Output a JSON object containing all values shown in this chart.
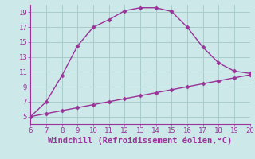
{
  "xlabel": "Windchill (Refroidissement éolien,°C)",
  "line1_x": [
    6,
    7,
    8,
    9,
    10,
    11,
    12,
    13,
    14,
    15,
    16,
    17,
    18,
    19,
    20
  ],
  "line1_y": [
    5,
    7,
    10.5,
    14.5,
    17,
    18,
    19.2,
    19.6,
    19.6,
    19.1,
    17,
    14.3,
    12.2,
    11.1,
    10.8
  ],
  "line2_x": [
    6,
    7,
    8,
    9,
    10,
    11,
    12,
    13,
    14,
    15,
    16,
    17,
    18,
    19,
    20
  ],
  "line2_y": [
    5.0,
    5.4,
    5.8,
    6.2,
    6.6,
    7.0,
    7.4,
    7.8,
    8.2,
    8.6,
    9.0,
    9.4,
    9.8,
    10.2,
    10.6
  ],
  "line_color": "#993399",
  "bg_color": "#cce8e8",
  "grid_color": "#aacccc",
  "xlim": [
    6,
    20
  ],
  "ylim": [
    4,
    20
  ],
  "xticks": [
    6,
    7,
    8,
    9,
    10,
    11,
    12,
    13,
    14,
    15,
    16,
    17,
    18,
    19,
    20
  ],
  "yticks": [
    5,
    7,
    9,
    11,
    13,
    15,
    17,
    19
  ],
  "tick_fontsize": 6.5,
  "xlabel_fontsize": 7.5,
  "marker": "D",
  "marker_size": 2.5,
  "linewidth": 1.0
}
